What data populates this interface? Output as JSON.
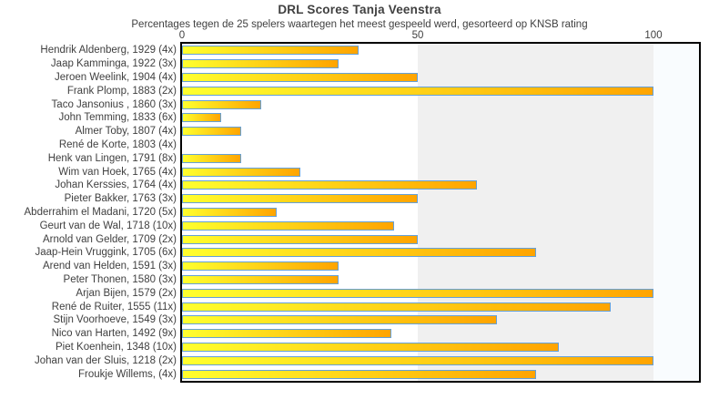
{
  "header": {
    "title": "DRL Scores Tanja Veenstra",
    "subtitle": "Percentages tegen de 25 spelers waartegen het meest gespeeld werd, gesorteerd op KNSB rating"
  },
  "axis": {
    "tick_labels": [
      "0",
      "50",
      "100"
    ]
  },
  "colors": {
    "text": "#404040",
    "plot_border": "#000000",
    "band_mid": "#f0f0f0",
    "band_high": "#f9fcfe",
    "bar_border": "#64a0d8",
    "bar_gradient_start": "#ffff2e",
    "bar_gradient_end": "#ffa400"
  },
  "chart_data": {
    "type": "bar",
    "orientation": "horizontal",
    "title": "DRL Scores Tanja Veenstra",
    "subtitle": "Percentages tegen de 25 spelers waartegen het meest gespeeld werd, gesorteerd op KNSB rating",
    "xlabel": "",
    "ylabel": "",
    "xlim": [
      0,
      110
    ],
    "gridlines": [
      0,
      50,
      100
    ],
    "legend": false,
    "categories": [
      "Hendrik Aldenberg, 1929 (4x)",
      "Jaap Kamminga, 1922 (3x)",
      "Jeroen Weelink, 1904 (4x)",
      "Frank Plomp, 1883 (2x)",
      "Taco Jansonius , 1860 (3x)",
      "John Temming, 1833 (6x)",
      "Almer Toby, 1807 (4x)",
      "René de Korte, 1803 (4x)",
      "Henk van Lingen, 1791 (8x)",
      "Wim van Hoek, 1765 (4x)",
      "Johan Kerssies, 1764 (4x)",
      "Pieter Bakker, 1763 (3x)",
      "Abderrahim el Madani, 1720 (5x)",
      "Geurt van de Wal, 1718 (10x)",
      "Arnold van Gelder, 1709 (2x)",
      "Jaap-Hein Vruggink, 1705 (6x)",
      "Arend van Helden, 1591 (3x)",
      "Peter Thonen, 1580 (3x)",
      "Arjan Bijen, 1579 (2x)",
      "René de Ruiter, 1555 (11x)",
      "Stijn Voorhoeve, 1549 (3x)",
      "Nico van Harten, 1492 (9x)",
      "Piet Koenhein, 1348 (10x)",
      "Johan van der Sluis, 1218 (2x)",
      "Froukje Willems,  (4x)"
    ],
    "values": [
      37.5,
      33.3,
      50,
      100,
      16.7,
      8.3,
      12.5,
      0,
      12.5,
      25,
      62.5,
      50,
      20,
      45,
      50,
      75,
      33.3,
      33.3,
      100,
      90.9,
      66.7,
      44.4,
      80,
      100,
      75
    ]
  }
}
